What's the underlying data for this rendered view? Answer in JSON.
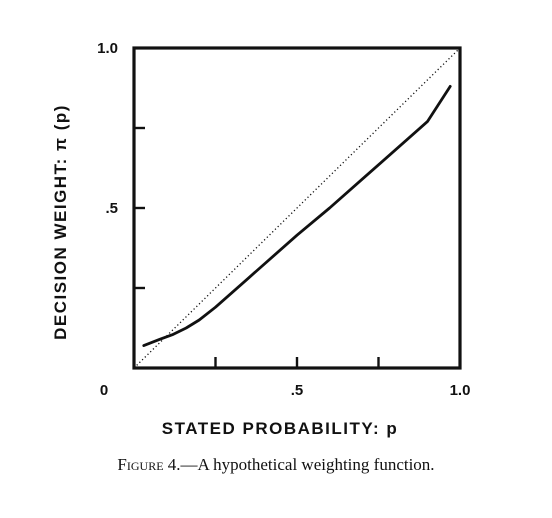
{
  "chart_data": {
    "type": "line",
    "xlabel": "STATED PROBABILITY: p",
    "ylabel": "DECISION WEIGHT: π (p)",
    "xlim": [
      0,
      1.0
    ],
    "ylim": [
      0,
      1.0
    ],
    "x_ticks": [
      0.25,
      0.5,
      0.75,
      1.0
    ],
    "y_ticks": [
      0.25,
      0.5,
      0.75,
      1.0
    ],
    "x_tick_labels": [
      {
        "value": 0,
        "label": "0"
      },
      {
        "value": 0.5,
        "label": ".5"
      },
      {
        "value": 1.0,
        "label": "1.0"
      }
    ],
    "y_tick_labels": [
      {
        "value": 0.5,
        "label": ".5"
      },
      {
        "value": 1.0,
        "label": "1.0"
      }
    ],
    "grid": false,
    "series": [
      {
        "style": "solid",
        "x": [
          0.03,
          0.08,
          0.12,
          0.16,
          0.2,
          0.25,
          0.3,
          0.35,
          0.4,
          0.5,
          0.6,
          0.7,
          0.8,
          0.9,
          0.97
        ],
        "y": [
          0.07,
          0.09,
          0.105,
          0.125,
          0.15,
          0.19,
          0.235,
          0.28,
          0.325,
          0.415,
          0.5,
          0.59,
          0.68,
          0.77,
          0.88
        ]
      },
      {
        "style": "dotted",
        "x": [
          0.0,
          1.0
        ],
        "y": [
          0.0,
          1.0
        ]
      }
    ]
  },
  "caption": {
    "figure_label": "Figure 4.",
    "text": "—A hypothetical weighting function."
  }
}
